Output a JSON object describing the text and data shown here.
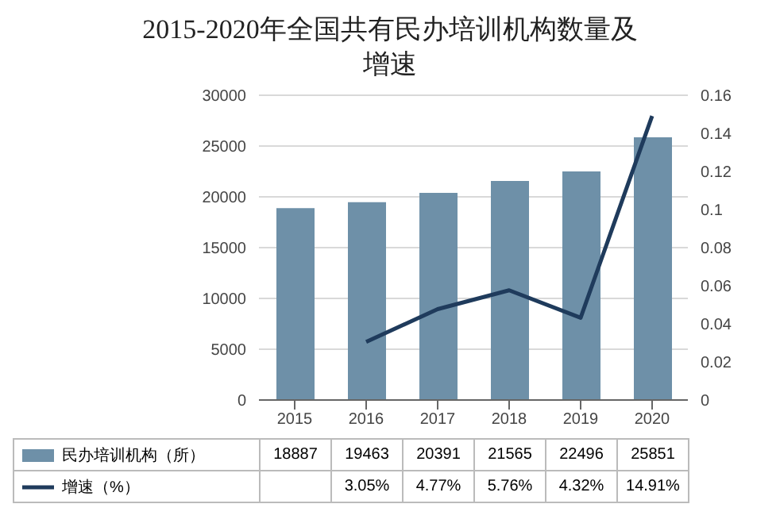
{
  "chart_data": {
    "type": "bar",
    "title": "2015-2020年全国共有民办培训机构数量及增速",
    "categories": [
      "2015",
      "2016",
      "2017",
      "2018",
      "2019",
      "2020"
    ],
    "series": [
      {
        "name": "民办培训机构（所）",
        "color": "#6e90a8",
        "values": [
          18887,
          19463,
          20391,
          21565,
          22496,
          25851
        ],
        "value_labels": [
          "18887",
          "19463",
          "20391",
          "21565",
          "22496",
          "25851"
        ]
      },
      {
        "name": "增速（%）",
        "type": "line",
        "axis": "y2",
        "color": "#1f3b5c",
        "values": [
          null,
          0.0305,
          0.0477,
          0.0576,
          0.0432,
          0.1491
        ],
        "value_labels": [
          null,
          "3.05%",
          "4.77%",
          "5.76%",
          "4.32%",
          "14.91%"
        ]
      }
    ],
    "ylim": [
      0,
      30000
    ],
    "yticks": [
      0,
      5000,
      10000,
      15000,
      20000,
      25000,
      30000
    ],
    "y2lim": [
      0,
      0.16
    ],
    "y2ticks": [
      0,
      0.02,
      0.04,
      0.06,
      0.08,
      0.1,
      0.12,
      0.14,
      0.16
    ],
    "grid": "y",
    "legend": "bottom",
    "marker": "none"
  }
}
